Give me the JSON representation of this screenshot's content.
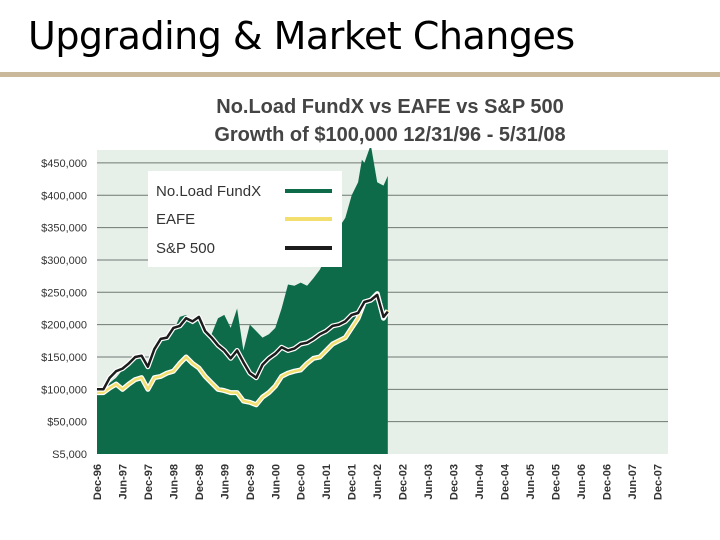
{
  "slide": {
    "title": "Upgrading & Market Changes"
  },
  "chart_data": {
    "type": "area",
    "title": "No.Load FundX  vs  EAFE  vs  S&P 500",
    "subtitle": "Growth of $100,000    12/31/96 - 5/31/08",
    "y_tick_labels": [
      "S5,000",
      "$50,000",
      "$100,000",
      "$150,000",
      "$200,000",
      "$250,000",
      "$300,000",
      "$350,000",
      "$400,000",
      "$450,000"
    ],
    "y_tick_values": [
      0,
      50000,
      100000,
      150000,
      200000,
      250000,
      300000,
      350000,
      400000,
      450000
    ],
    "ylim": [
      0,
      470000
    ],
    "x_tick_labels": [
      "Dec-96",
      "Jun-97",
      "Dec-97",
      "Jun-98",
      "Dec-98",
      "Jun-99",
      "Dec-99",
      "Jun-00",
      "Dec-00",
      "Jun-01",
      "Dec-01",
      "Jun-02",
      "Dec-02",
      "Jun-03",
      "Dec-03",
      "Jun-04",
      "Dec-04",
      "Jun-05",
      "Dec-05",
      "Jun-06",
      "Dec-06",
      "Jun-07",
      "Dec-07"
    ],
    "legend": {
      "position": "top-left"
    },
    "grid": true,
    "series": [
      {
        "name": "No.Load FundX",
        "color": "#0e6b4a",
        "style": "area",
        "x": [
          0,
          0.25,
          0.5,
          0.75,
          1,
          1.25,
          1.5,
          1.75,
          2,
          2.25,
          2.5,
          2.75,
          3,
          3.25,
          3.5,
          3.75,
          4,
          4.25,
          4.5,
          4.75,
          5,
          5.25,
          5.5,
          5.75,
          6,
          6.25,
          6.5,
          6.75,
          7,
          7.25,
          7.5,
          7.75,
          8,
          8.25,
          8.5,
          8.75,
          9,
          9.25,
          9.5,
          9.75,
          10,
          10.25,
          10.4,
          10.5,
          10.75,
          11,
          11.25,
          11.42
        ],
        "y": [
          100000,
          98000,
          110000,
          118000,
          130000,
          140000,
          150000,
          155000,
          138000,
          165000,
          178000,
          185000,
          190000,
          212000,
          215000,
          200000,
          212000,
          195000,
          185000,
          210000,
          215000,
          195000,
          225000,
          160000,
          200000,
          190000,
          180000,
          185000,
          195000,
          225000,
          262000,
          260000,
          265000,
          260000,
          272000,
          285000,
          305000,
          320000,
          350000,
          365000,
          400000,
          420000,
          455000,
          450000,
          478000,
          420000,
          415000,
          430000
        ]
      },
      {
        "name": "EAFE",
        "color": "#f3df6e",
        "style": "line",
        "x": [
          0,
          0.25,
          0.5,
          0.75,
          1,
          1.25,
          1.5,
          1.75,
          2,
          2.25,
          2.5,
          2.75,
          3,
          3.25,
          3.5,
          3.75,
          4,
          4.25,
          4.5,
          4.75,
          5,
          5.25,
          5.5,
          5.75,
          6,
          6.25,
          6.5,
          6.75,
          7,
          7.25,
          7.5,
          7.75,
          8,
          8.25,
          8.5,
          8.75,
          9,
          9.25,
          9.5,
          9.75,
          10,
          10.25,
          10.5,
          10.75,
          11,
          11.25,
          11.42
        ],
        "y": [
          95000,
          95000,
          102000,
          108000,
          100000,
          108000,
          115000,
          118000,
          100000,
          118000,
          120000,
          125000,
          128000,
          140000,
          150000,
          140000,
          133000,
          120000,
          110000,
          100000,
          98000,
          95000,
          95000,
          82000,
          80000,
          76000,
          88000,
          95000,
          105000,
          120000,
          125000,
          128000,
          130000,
          140000,
          148000,
          150000,
          160000,
          170000,
          175000,
          180000,
          195000,
          210000,
          235000,
          238000,
          248000,
          210000,
          222000
        ]
      },
      {
        "name": "S&P 500",
        "color": "#1c1c1c",
        "style": "line",
        "x": [
          0,
          0.25,
          0.5,
          0.75,
          1,
          1.25,
          1.5,
          1.75,
          2,
          2.25,
          2.5,
          2.75,
          3,
          3.25,
          3.5,
          3.75,
          4,
          4.25,
          4.5,
          4.75,
          5,
          5.25,
          5.5,
          5.75,
          6,
          6.25,
          6.5,
          6.75,
          7,
          7.25,
          7.5,
          7.75,
          8,
          8.25,
          8.5,
          8.75,
          9,
          9.25,
          9.5,
          9.75,
          10,
          10.25,
          10.5,
          10.75,
          11,
          11.25,
          11.42
        ],
        "y": [
          100000,
          100000,
          118000,
          128000,
          132000,
          140000,
          150000,
          152000,
          135000,
          162000,
          178000,
          180000,
          195000,
          198000,
          210000,
          205000,
          212000,
          190000,
          180000,
          168000,
          160000,
          148000,
          160000,
          142000,
          125000,
          118000,
          138000,
          148000,
          155000,
          165000,
          160000,
          163000,
          170000,
          172000,
          178000,
          185000,
          190000,
          198000,
          200000,
          205000,
          215000,
          218000,
          235000,
          238000,
          246000,
          212000,
          220000
        ]
      }
    ]
  }
}
